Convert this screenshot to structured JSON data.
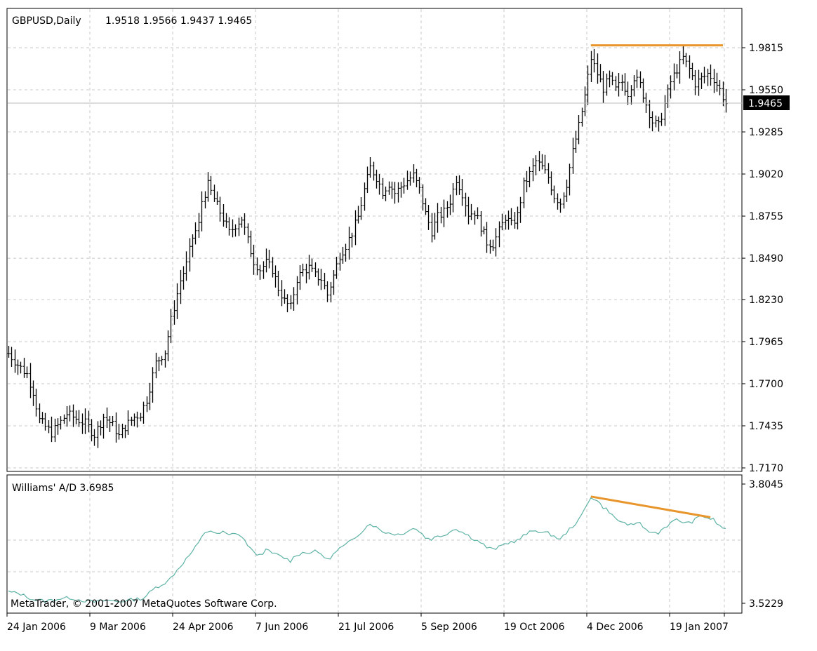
{
  "header": {
    "symbol_label": "GBPUSD,Daily",
    "ohlc": "1.9518 1.9566 1.9437 1.9465"
  },
  "price_panel": {
    "current_price": "1.9465",
    "y_ticks": [
      "1.9815",
      "1.9550",
      "1.9285",
      "1.9020",
      "1.8755",
      "1.8490",
      "1.8230",
      "1.7965",
      "1.7700",
      "1.7435",
      "1.7170"
    ]
  },
  "indicator_panel": {
    "label": "Williams' A/D 3.6985",
    "y_ticks": [
      "3.8045",
      "3.5229"
    ]
  },
  "copyright": "MetaTrader, © 2001-2007 MetaQuotes Software Corp.",
  "x_ticks": [
    "24 Jan 2006",
    "9 Mar 2006",
    "24 Apr 2006",
    "7 Jun 2006",
    "21 Jul 2006",
    "5 Sep 2006",
    "19 Oct 2006",
    "4 Dec 2006",
    "19 Jan 2007"
  ],
  "colors": {
    "bars": "#000000",
    "indicator_line": "#5fb3a6",
    "trendline": "#e8962c",
    "grid": "#c8c8c8",
    "price_box_bg": "#000000",
    "price_box_text": "#ffffff"
  },
  "chart_data": [
    {
      "type": "line",
      "subtype": "ohlc-bars",
      "title": "GBPUSD,Daily",
      "ylim": [
        1.717,
        1.9955
      ],
      "x_range": [
        "24 Jan 2006",
        "31 Jan 2007"
      ],
      "grid": true,
      "series": [
        {
          "name": "GBPUSD",
          "anchors": [
            [
              0,
              1.789
            ],
            [
              3,
              1.782
            ],
            [
              6,
              1.776
            ],
            [
              8,
              1.765
            ],
            [
              10,
              1.747
            ],
            [
              14,
              1.739
            ],
            [
              17,
              1.746
            ],
            [
              19,
              1.751
            ],
            [
              22,
              1.748
            ],
            [
              25,
              1.745
            ],
            [
              28,
              1.738
            ],
            [
              31,
              1.749
            ],
            [
              34,
              1.744
            ],
            [
              36,
              1.737
            ],
            [
              38,
              1.743
            ],
            [
              41,
              1.749
            ],
            [
              43,
              1.751
            ],
            [
              45,
              1.76
            ],
            [
              48,
              1.783
            ],
            [
              51,
              1.79
            ],
            [
              53,
              1.81
            ],
            [
              56,
              1.835
            ],
            [
              58,
              1.845
            ],
            [
              60,
              1.862
            ],
            [
              62,
              1.87
            ],
            [
              63,
              1.885
            ],
            [
              65,
              1.895
            ],
            [
              68,
              1.882
            ],
            [
              70,
              1.874
            ],
            [
              72,
              1.865
            ],
            [
              74,
              1.87
            ],
            [
              76,
              1.874
            ],
            [
              78,
              1.86
            ],
            [
              80,
              1.847
            ],
            [
              82,
              1.842
            ],
            [
              84,
              1.846
            ],
            [
              86,
              1.842
            ],
            [
              88,
              1.83
            ],
            [
              90,
              1.822
            ],
            [
              92,
              1.818
            ],
            [
              94,
              1.836
            ],
            [
              96,
              1.841
            ],
            [
              98,
              1.843
            ],
            [
              100,
              1.838
            ],
            [
              102,
              1.836
            ],
            [
              104,
              1.826
            ],
            [
              106,
              1.838
            ],
            [
              108,
              1.851
            ],
            [
              110,
              1.857
            ],
            [
              112,
              1.865
            ],
            [
              114,
              1.875
            ],
            [
              116,
              1.892
            ],
            [
              118,
              1.906
            ],
            [
              120,
              1.9
            ],
            [
              122,
              1.891
            ],
            [
              124,
              1.896
            ],
            [
              126,
              1.89
            ],
            [
              128,
              1.894
            ],
            [
              130,
              1.898
            ],
            [
              132,
              1.901
            ],
            [
              134,
              1.892
            ],
            [
              136,
              1.877
            ],
            [
              138,
              1.866
            ],
            [
              140,
              1.875
            ],
            [
              142,
              1.878
            ],
            [
              144,
              1.885
            ],
            [
              146,
              1.899
            ],
            [
              148,
              1.89
            ],
            [
              150,
              1.877
            ],
            [
              152,
              1.878
            ],
            [
              154,
              1.869
            ],
            [
              156,
              1.859
            ],
            [
              158,
              1.858
            ],
            [
              160,
              1.866
            ],
            [
              162,
              1.875
            ],
            [
              164,
              1.87
            ],
            [
              166,
              1.876
            ],
            [
              168,
              1.895
            ],
            [
              170,
              1.902
            ],
            [
              172,
              1.91
            ],
            [
              174,
              1.906
            ],
            [
              176,
              1.9
            ],
            [
              178,
              1.888
            ],
            [
              180,
              1.884
            ],
            [
              182,
              1.896
            ],
            [
              184,
              1.916
            ],
            [
              186,
              1.932
            ],
            [
              188,
              1.951
            ],
            [
              190,
              1.975
            ],
            [
              192,
              1.965
            ],
            [
              194,
              1.956
            ],
            [
              196,
              1.962
            ],
            [
              198,
              1.955
            ],
            [
              200,
              1.96
            ],
            [
              202,
              1.953
            ],
            [
              204,
              1.963
            ],
            [
              206,
              1.958
            ],
            [
              208,
              1.946
            ],
            [
              210,
              1.935
            ],
            [
              212,
              1.932
            ],
            [
              214,
              1.946
            ],
            [
              216,
              1.96
            ],
            [
              218,
              1.968
            ],
            [
              220,
              1.975
            ],
            [
              222,
              1.968
            ],
            [
              224,
              1.959
            ],
            [
              226,
              1.962
            ],
            [
              228,
              1.965
            ],
            [
              230,
              1.962
            ],
            [
              232,
              1.955
            ],
            [
              234,
              1.9465
            ]
          ]
        }
      ],
      "annotations": [
        {
          "type": "horizontal-trendline",
          "value": 1.983,
          "from_index": 190,
          "to_index": 234,
          "color": "#e8962c"
        }
      ]
    },
    {
      "type": "line",
      "title": "Williams' A/D 3.6985",
      "ylim": [
        3.5229,
        3.8045
      ],
      "series": [
        {
          "name": "Williams' A/D",
          "anchors": [
            [
              0,
              3.55
            ],
            [
              4,
              3.545
            ],
            [
              8,
              3.532
            ],
            [
              12,
              3.528
            ],
            [
              16,
              3.533
            ],
            [
              20,
              3.536
            ],
            [
              24,
              3.53
            ],
            [
              28,
              3.526
            ],
            [
              32,
              3.53
            ],
            [
              36,
              3.527
            ],
            [
              40,
              3.531
            ],
            [
              44,
              3.535
            ],
            [
              48,
              3.56
            ],
            [
              52,
              3.575
            ],
            [
              56,
              3.61
            ],
            [
              60,
              3.645
            ],
            [
              62,
              3.665
            ],
            [
              64,
              3.69
            ],
            [
              66,
              3.695
            ],
            [
              68,
              3.685
            ],
            [
              70,
              3.691
            ],
            [
              72,
              3.683
            ],
            [
              74,
              3.69
            ],
            [
              76,
              3.68
            ],
            [
              78,
              3.662
            ],
            [
              80,
              3.642
            ],
            [
              82,
              3.637
            ],
            [
              84,
              3.648
            ],
            [
              86,
              3.642
            ],
            [
              88,
              3.636
            ],
            [
              90,
              3.63
            ],
            [
              92,
              3.623
            ],
            [
              94,
              3.638
            ],
            [
              96,
              3.642
            ],
            [
              98,
              3.643
            ],
            [
              100,
              3.645
            ],
            [
              102,
              3.64
            ],
            [
              104,
              3.625
            ],
            [
              106,
              3.638
            ],
            [
              108,
              3.652
            ],
            [
              110,
              3.66
            ],
            [
              112,
              3.672
            ],
            [
              114,
              3.685
            ],
            [
              116,
              3.698
            ],
            [
              118,
              3.712
            ],
            [
              120,
              3.702
            ],
            [
              122,
              3.693
            ],
            [
              124,
              3.689
            ],
            [
              126,
              3.687
            ],
            [
              128,
              3.685
            ],
            [
              130,
              3.694
            ],
            [
              132,
              3.7
            ],
            [
              134,
              3.694
            ],
            [
              136,
              3.678
            ],
            [
              138,
              3.675
            ],
            [
              140,
              3.681
            ],
            [
              142,
              3.684
            ],
            [
              144,
              3.692
            ],
            [
              146,
              3.7
            ],
            [
              148,
              3.691
            ],
            [
              150,
              3.683
            ],
            [
              152,
              3.674
            ],
            [
              154,
              3.667
            ],
            [
              156,
              3.655
            ],
            [
              158,
              3.65
            ],
            [
              160,
              3.655
            ],
            [
              162,
              3.663
            ],
            [
              164,
              3.668
            ],
            [
              166,
              3.671
            ],
            [
              168,
              3.682
            ],
            [
              170,
              3.69
            ],
            [
              172,
              3.696
            ],
            [
              174,
              3.69
            ],
            [
              176,
              3.688
            ],
            [
              178,
              3.682
            ],
            [
              180,
              3.673
            ],
            [
              182,
              3.69
            ],
            [
              184,
              3.705
            ],
            [
              186,
              3.718
            ],
            [
              188,
              3.745
            ],
            [
              190,
              3.775
            ],
            [
              192,
              3.765
            ],
            [
              194,
              3.75
            ],
            [
              196,
              3.74
            ],
            [
              198,
              3.722
            ],
            [
              200,
              3.715
            ],
            [
              202,
              3.71
            ],
            [
              204,
              3.705
            ],
            [
              206,
              3.715
            ],
            [
              208,
              3.695
            ],
            [
              210,
              3.69
            ],
            [
              212,
              3.69
            ],
            [
              214,
              3.702
            ],
            [
              216,
              3.712
            ],
            [
              218,
              3.72
            ],
            [
              220,
              3.715
            ],
            [
              222,
              3.712
            ],
            [
              224,
              3.72
            ],
            [
              226,
              3.73
            ],
            [
              228,
              3.725
            ],
            [
              230,
              3.72
            ],
            [
              232,
              3.705
            ],
            [
              234,
              3.6985
            ]
          ]
        }
      ],
      "annotations": [
        {
          "type": "trendline",
          "from": [
            190,
            3.775
          ],
          "to": [
            229,
            3.726
          ],
          "color": "#e8962c"
        }
      ]
    }
  ]
}
